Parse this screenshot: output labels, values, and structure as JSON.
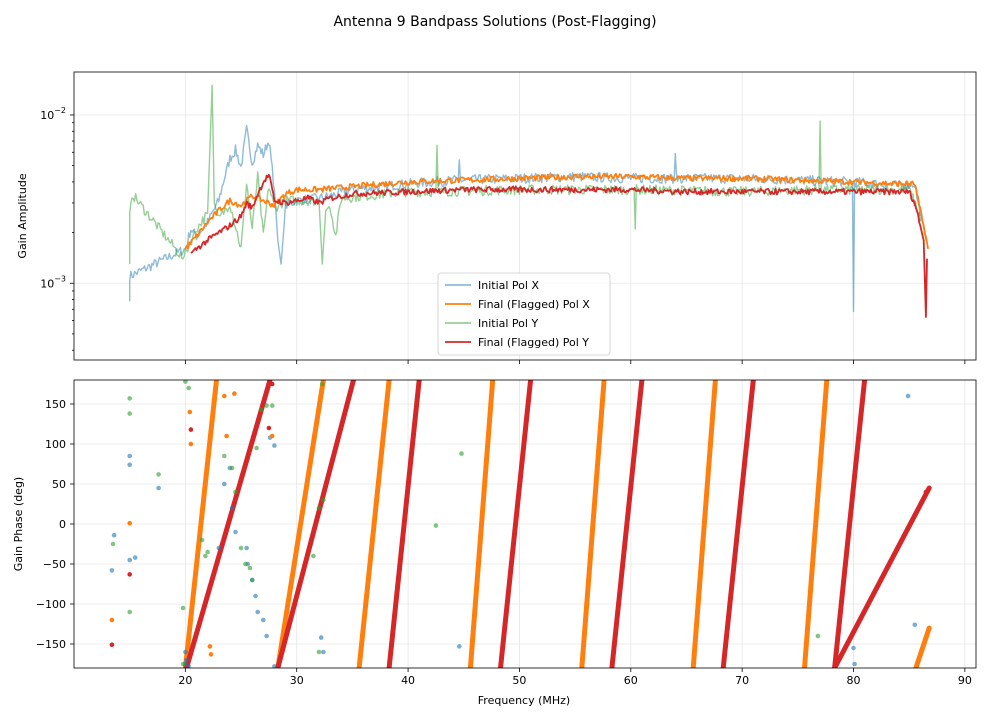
{
  "title": "Antenna 9 Bandpass Solutions (Post-Flagging)",
  "chart_data": [
    {
      "type": "line",
      "ylabel": "Gain Amplitude",
      "yscale": "log",
      "ylim": [
        0.00035,
        0.018
      ],
      "xlim": [
        10,
        91
      ],
      "yticks": [
        {
          "value": 0.01,
          "base": "10",
          "exp": "−2"
        },
        {
          "value": 0.001,
          "base": "10",
          "exp": "−3"
        }
      ],
      "legend": {
        "placement": "lower-center",
        "entries": [
          "Initial Pol X",
          "Final (Flagged) Pol X",
          "Initial Pol Y",
          "Final (Flagged) Pol Y"
        ]
      },
      "series": [
        {
          "name": "Initial Pol X",
          "color": "#1f77b4",
          "alpha": 0.5,
          "points": [
            [
              15,
              0.00078
            ],
            [
              15,
              0.0011
            ],
            [
              20,
              0.0016
            ],
            [
              20.5,
              0.0021
            ],
            [
              21,
              0.0019
            ],
            [
              22,
              0.0023
            ],
            [
              23,
              0.0031
            ],
            [
              23.5,
              0.0042
            ],
            [
              24,
              0.0055
            ],
            [
              24.5,
              0.0062
            ],
            [
              25,
              0.0049
            ],
            [
              25.5,
              0.0082
            ],
            [
              26,
              0.0052
            ],
            [
              26.5,
              0.0066
            ],
            [
              27,
              0.0058
            ],
            [
              27.5,
              0.0071
            ],
            [
              28,
              0.0036
            ],
            [
              28.3,
              0.0018
            ],
            [
              28.6,
              0.0013
            ],
            [
              29,
              0.0029
            ],
            [
              30,
              0.0031
            ],
            [
              32,
              0.0032
            ],
            [
              33,
              0.0033
            ],
            [
              35,
              0.0036
            ],
            [
              40,
              0.0039
            ],
            [
              44.5,
              0.0041
            ],
            [
              44.6,
              0.0054
            ],
            [
              44.7,
              0.0041
            ],
            [
              50,
              0.0042
            ],
            [
              55,
              0.0043
            ],
            [
              60,
              0.0042
            ],
            [
              63.9,
              0.0042
            ],
            [
              64,
              0.0059
            ],
            [
              64.1,
              0.0042
            ],
            [
              70,
              0.0042
            ],
            [
              75,
              0.0041
            ],
            [
              79.9,
              0.004
            ],
            [
              80,
              0.00068
            ],
            [
              80.1,
              0.004
            ],
            [
              84,
              0.0038
            ],
            [
              85.5,
              0.0039
            ],
            [
              86,
              0.0025
            ],
            [
              86.5,
              0.0018
            ]
          ]
        },
        {
          "name": "Final (Flagged) Pol X",
          "color": "#ff7f0e",
          "alpha": 1,
          "points": [
            [
              20,
              0.0016
            ],
            [
              21,
              0.0019
            ],
            [
              22,
              0.0023
            ],
            [
              23,
              0.0027
            ],
            [
              24,
              0.0031
            ],
            [
              25,
              0.0029
            ],
            [
              26,
              0.0033
            ],
            [
              27,
              0.0031
            ],
            [
              28,
              0.0029
            ],
            [
              29,
              0.0034
            ],
            [
              30,
              0.0036
            ],
            [
              32,
              0.0036
            ],
            [
              34,
              0.0037
            ],
            [
              36,
              0.0038
            ],
            [
              38,
              0.0039
            ],
            [
              40,
              0.004
            ],
            [
              45,
              0.0041
            ],
            [
              50,
              0.0042
            ],
            [
              55,
              0.0043
            ],
            [
              60,
              0.0043
            ],
            [
              65,
              0.0042
            ],
            [
              70,
              0.0042
            ],
            [
              75,
              0.0041
            ],
            [
              80,
              0.004
            ],
            [
              84,
              0.0039
            ],
            [
              85.5,
              0.0039
            ],
            [
              86,
              0.0027
            ],
            [
              86.5,
              0.0019
            ],
            [
              86.7,
              0.0016
            ]
          ]
        },
        {
          "name": "Initial Pol Y",
          "color": "#2ca02c",
          "alpha": 0.5,
          "points": [
            [
              15,
              0.0013
            ],
            [
              15,
              0.0026
            ],
            [
              15.2,
              0.0034
            ],
            [
              19.8,
              0.0014
            ],
            [
              20,
              0.0015
            ],
            [
              21,
              0.0021
            ],
            [
              22,
              0.0026
            ],
            [
              22.4,
              0.015
            ],
            [
              22.6,
              0.003
            ],
            [
              23,
              0.0024
            ],
            [
              24,
              0.003
            ],
            [
              25,
              0.0016
            ],
            [
              25.5,
              0.004
            ],
            [
              26,
              0.0021
            ],
            [
              26.5,
              0.0043
            ],
            [
              27,
              0.0019
            ],
            [
              27.5,
              0.0038
            ],
            [
              28,
              0.0028
            ],
            [
              29,
              0.0031
            ],
            [
              32,
              0.0031
            ],
            [
              32.3,
              0.0013
            ],
            [
              32.6,
              0.0027
            ],
            [
              33,
              0.0029
            ],
            [
              33.5,
              0.0019
            ],
            [
              34,
              0.0032
            ],
            [
              40,
              0.0035
            ],
            [
              42.5,
              0.0035
            ],
            [
              42.6,
              0.0066
            ],
            [
              42.7,
              0.0035
            ],
            [
              50,
              0.0036
            ],
            [
              60,
              0.0036
            ],
            [
              60.3,
              0.0036
            ],
            [
              60.4,
              0.0021
            ],
            [
              60.5,
              0.0036
            ],
            [
              70,
              0.0035
            ],
            [
              76.9,
              0.0036
            ],
            [
              77,
              0.0092
            ],
            [
              77.1,
              0.0036
            ],
            [
              84,
              0.0036
            ],
            [
              85,
              0.0036
            ],
            [
              86,
              0.0025
            ]
          ]
        },
        {
          "name": "Final (Flagged) Pol Y",
          "color": "#d62728",
          "alpha": 1,
          "points": [
            [
              20.5,
              0.0015
            ],
            [
              21,
              0.0016
            ],
            [
              22,
              0.0018
            ],
            [
              23,
              0.002
            ],
            [
              24,
              0.0022
            ],
            [
              25,
              0.0025
            ],
            [
              25.5,
              0.003
            ],
            [
              26,
              0.0028
            ],
            [
              26.5,
              0.0034
            ],
            [
              27,
              0.004
            ],
            [
              27.5,
              0.0044
            ],
            [
              28,
              0.0031
            ],
            [
              29,
              0.003
            ],
            [
              30,
              0.0031
            ],
            [
              31,
              0.0032
            ],
            [
              32,
              0.003
            ],
            [
              33,
              0.0032
            ],
            [
              35,
              0.0034
            ],
            [
              40,
              0.0035
            ],
            [
              45,
              0.0036
            ],
            [
              50,
              0.0036
            ],
            [
              55,
              0.0036
            ],
            [
              60,
              0.0036
            ],
            [
              65,
              0.0035
            ],
            [
              70,
              0.0035
            ],
            [
              75,
              0.0035
            ],
            [
              80,
              0.0035
            ],
            [
              84,
              0.0035
            ],
            [
              85,
              0.0035
            ],
            [
              85.5,
              0.003
            ],
            [
              86,
              0.0022
            ],
            [
              86.3,
              0.0018
            ],
            [
              86.5,
              0.00063
            ],
            [
              86.6,
              0.0014
            ]
          ]
        }
      ]
    },
    {
      "type": "scatter",
      "xlabel": "Frequency (MHz)",
      "ylabel": "Gain Phase (deg)",
      "ylim": [
        -180,
        180
      ],
      "xlim": [
        10,
        91
      ],
      "xticks": [
        20,
        30,
        40,
        50,
        60,
        70,
        80,
        90
      ],
      "yticks": [
        -150,
        -100,
        -50,
        0,
        50,
        100,
        150
      ],
      "phase_wraps": [
        {
          "series": "Final (Flagged) Pol X",
          "color": "#ff7f0e",
          "x_start": [
            20,
            28.3,
            35.6,
            45.6,
            55.6,
            65.6,
            75.6,
            85.6
          ],
          "x_end": [
            22.8,
            32.4,
            38.3,
            47.6,
            57.6,
            67.6,
            77.6,
            86.8
          ]
        },
        {
          "series": "Final (Flagged) Pol Y",
          "color": "#d62728",
          "x_start": [
            20.1,
            28.3,
            38.3,
            48.3,
            58.3,
            68.3,
            78.3
          ],
          "x_end": [
            27.6,
            35.1,
            41.0,
            51.0,
            61.0,
            71.0,
            81.0
          ],
          "final_segment": {
            "x_start": 78.3,
            "x_end": 86.8
          }
        }
      ],
      "scatter_points": [
        {
          "series": "Initial Pol X",
          "color": "#1f77b4",
          "points": [
            [
              13.4,
              -58
            ],
            [
              13.6,
              -14
            ],
            [
              15,
              85
            ],
            [
              15,
              74
            ],
            [
              15,
              -45
            ],
            [
              15.5,
              -42
            ],
            [
              17.6,
              45
            ],
            [
              20,
              -160
            ],
            [
              20,
              -175
            ],
            [
              20.1,
              -170
            ],
            [
              20.3,
              -178
            ],
            [
              23,
              -30
            ],
            [
              23.5,
              50
            ],
            [
              24,
              70
            ],
            [
              24.2,
              20
            ],
            [
              24.5,
              -10
            ],
            [
              25.5,
              -30
            ],
            [
              25.6,
              -50
            ],
            [
              26,
              -70
            ],
            [
              26.3,
              -90
            ],
            [
              26.5,
              -110
            ],
            [
              27,
              -120
            ],
            [
              27.3,
              -140
            ],
            [
              27.6,
              108
            ],
            [
              28,
              98
            ],
            [
              28,
              -178
            ],
            [
              32.2,
              -142
            ],
            [
              32.4,
              -160
            ],
            [
              44.6,
              -153
            ],
            [
              80,
              -155
            ],
            [
              80.1,
              -175
            ],
            [
              85.5,
              -126
            ],
            [
              84.9,
              160
            ]
          ]
        },
        {
          "series": "Initial Pol Y",
          "color": "#2ca02c",
          "points": [
            [
              13.5,
              -25
            ],
            [
              15,
              157
            ],
            [
              15,
              138
            ],
            [
              15,
              -110
            ],
            [
              17.6,
              62
            ],
            [
              19.8,
              -105
            ],
            [
              19.8,
              -175
            ],
            [
              20,
              178
            ],
            [
              20.3,
              170
            ],
            [
              21.5,
              -20
            ],
            [
              21.8,
              -40
            ],
            [
              22,
              -35
            ],
            [
              23.5,
              85
            ],
            [
              24.2,
              70
            ],
            [
              24.5,
              40
            ],
            [
              25,
              -30
            ],
            [
              25.4,
              -50
            ],
            [
              25.8,
              -55
            ],
            [
              26,
              -70
            ],
            [
              26.4,
              95
            ],
            [
              26.8,
              143
            ],
            [
              27.3,
              148
            ],
            [
              27.8,
              148
            ],
            [
              31.5,
              -40
            ],
            [
              32,
              20
            ],
            [
              32,
              -160
            ],
            [
              32.3,
              175
            ],
            [
              32.4,
              30
            ],
            [
              42.5,
              -2
            ],
            [
              44.8,
              88
            ],
            [
              76.8,
              -140
            ]
          ]
        },
        {
          "series": "Final (Flagged) Pol X",
          "color": "#ff7f0e",
          "points": [
            [
              15,
              1
            ],
            [
              13.4,
              -120
            ],
            [
              20.4,
              140
            ],
            [
              20.5,
              100
            ],
            [
              22.2,
              -153
            ],
            [
              22.3,
              -163
            ],
            [
              23.5,
              160
            ],
            [
              23.7,
              110
            ],
            [
              24.4,
              163
            ],
            [
              27.8,
              110
            ]
          ]
        },
        {
          "series": "Final (Flagged) Pol Y",
          "color": "#d62728",
          "points": [
            [
              13.4,
              -151
            ],
            [
              15,
              -63
            ],
            [
              20.5,
              118
            ],
            [
              27.5,
              120
            ],
            [
              27.8,
              175
            ],
            [
              86.5,
              40
            ]
          ]
        }
      ]
    }
  ]
}
